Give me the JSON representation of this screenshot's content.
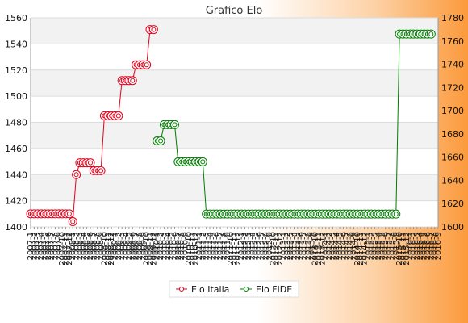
{
  "colors": {
    "italia": "#e3001b",
    "fide": "#007d00",
    "band": "#f2f2f2"
  },
  "chart_data": {
    "type": "line",
    "title": "Grafico Elo",
    "left_axis": {
      "min": 1400,
      "max": 1560,
      "step": 20
    },
    "right_axis": {
      "min": 1600,
      "max": 1780,
      "step": 20
    },
    "x_labels": [
      "2007-1",
      "2007-2",
      "2007-3",
      "2007-4",
      "2007-5",
      "2007-6",
      "2007-7",
      "2007-8",
      "2007-9",
      "2007-10",
      "2007-11",
      "2007-12",
      "2008-1",
      "2008-2",
      "2008-3",
      "2008-4",
      "2008-5",
      "2008-6",
      "2008-7",
      "2008-8",
      "2008-9",
      "2008-10",
      "2008-11",
      "2008-12",
      "2009-1",
      "2009-2",
      "2009-3",
      "2009-4",
      "2009-5",
      "2009-6",
      "2009-7",
      "2009-8",
      "2009-9",
      "2009-10",
      "2009-11",
      "2009-12",
      "2010-1",
      "2010-2",
      "2010-3",
      "2010-4",
      "2010-5",
      "2010-6",
      "2010-7",
      "2010-8",
      "2010-9",
      "2010-10",
      "2010-11",
      "2010-12",
      "2011-1",
      "2011-2",
      "2011-3",
      "2011-4",
      "2011-5",
      "2011-6",
      "2011-7",
      "2011-8",
      "2011-9",
      "2011-10",
      "2011-11",
      "2011-12",
      "2012-1",
      "2012-2",
      "2012-3",
      "2012-4",
      "2012-5",
      "2012-6",
      "2012-7",
      "2012-8",
      "2012-9",
      "2012-10",
      "2012-11",
      "2012-12",
      "2013-1",
      "2013-2",
      "2013-3",
      "2013-4",
      "2013-5",
      "2013-6",
      "2013-7",
      "2013-8",
      "2013-9",
      "2013-10",
      "2013-11",
      "2013-12",
      "2014-1",
      "2014-2",
      "2014-3",
      "2014-4",
      "2014-5",
      "2014-6",
      "2014-7",
      "2014-8",
      "2014-9",
      "2014-10",
      "2014-11",
      "2014-12",
      "2015-1",
      "2015-2",
      "2015-3",
      "2015-4",
      "2015-5",
      "2015-6",
      "2015-7",
      "2015-8",
      "2015-9",
      "2015-10",
      "2015-11",
      "2015-12",
      "2016-1",
      "2016-2",
      "2016-3",
      "2016-4",
      "2016-5",
      "2016-6",
      "2016-7",
      "2016-8",
      "2016-9"
    ],
    "series": [
      {
        "name": "Elo Italia",
        "axis": "left",
        "runs": [
          {
            "start": 0,
            "end": 11,
            "value": 1410
          },
          {
            "start": 12,
            "end": 12,
            "value": 1404
          },
          {
            "start": 13,
            "end": 13,
            "value": 1440
          },
          {
            "start": 14,
            "end": 17,
            "value": 1449
          },
          {
            "start": 18,
            "end": 20,
            "value": 1443
          },
          {
            "start": 21,
            "end": 25,
            "value": 1485
          },
          {
            "start": 26,
            "end": 29,
            "value": 1512
          },
          {
            "start": 30,
            "end": 33,
            "value": 1524
          },
          {
            "start": 34,
            "end": 35,
            "value": 1551
          }
        ]
      },
      {
        "name": "Elo FIDE",
        "axis": "right",
        "runs": [
          {
            "start": 36,
            "end": 37,
            "value": 1674
          },
          {
            "start": 38,
            "end": 41,
            "value": 1688
          },
          {
            "start": 42,
            "end": 49,
            "value": 1656
          },
          {
            "start": 50,
            "end": 104,
            "value": 1611
          },
          {
            "start": 105,
            "end": 114,
            "value": 1766
          }
        ]
      }
    ],
    "legend": [
      "Elo Italia",
      "Elo FIDE"
    ],
    "legend_position": "bottom",
    "grid": true
  }
}
